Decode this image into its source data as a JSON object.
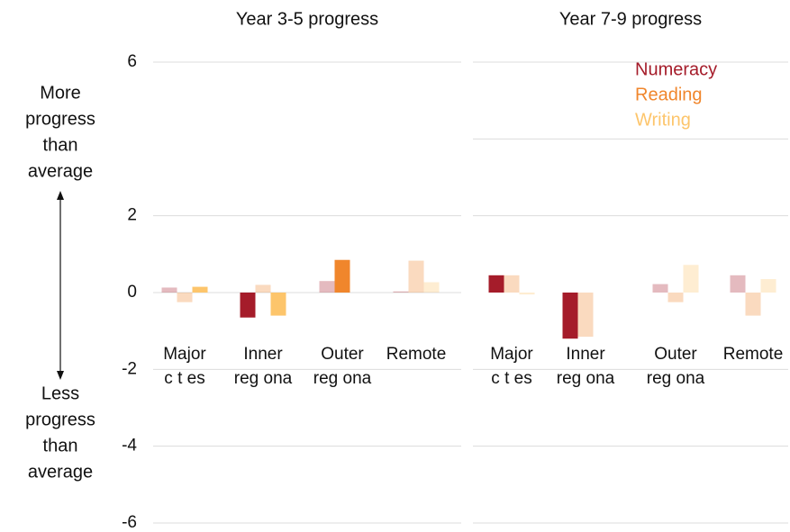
{
  "chart_data": [
    {
      "type": "bar",
      "title": "Year 3-5 progress",
      "categories": [
        [
          "Major",
          "c t es"
        ],
        [
          "Inner",
          "reg ona"
        ],
        [
          "Outer",
          "reg ona"
        ],
        [
          "Remote"
        ]
      ],
      "series": [
        {
          "name": "Numeracy",
          "color": "#a51c2a",
          "values": [
            0.13,
            -0.65,
            0.3,
            0.03
          ],
          "highlighted": [
            false,
            true,
            false,
            false
          ]
        },
        {
          "name": "Reading",
          "color": "#f0862c",
          "values": [
            -0.25,
            0.2,
            0.85,
            0.83
          ],
          "highlighted": [
            false,
            false,
            true,
            false
          ]
        },
        {
          "name": "Writing",
          "color": "#fdc56b",
          "values": [
            0.15,
            -0.6,
            0,
            0.27
          ],
          "highlighted": [
            true,
            true,
            false,
            false
          ]
        }
      ],
      "ylim": [
        -6,
        6
      ],
      "yticks": [
        6,
        2,
        0,
        -2,
        -4,
        -6
      ],
      "tick_labels": true,
      "grid": true,
      "annotations": {
        "top": [
          "More",
          "progress",
          "than",
          "average"
        ],
        "bottom": [
          "Less",
          "progress",
          "than",
          "average"
        ]
      }
    },
    {
      "type": "bar",
      "title": "Year 7-9 progress",
      "categories": [
        [
          "Major",
          "c t es"
        ],
        [
          "Inner",
          "reg ona"
        ],
        [
          "Outer",
          "reg ona"
        ],
        [
          "Remote"
        ]
      ],
      "series": [
        {
          "name": "Numeracy",
          "color": "#a51c2a",
          "values": [
            0.45,
            -1.2,
            0.22,
            0.45
          ],
          "highlighted": [
            true,
            true,
            false,
            false
          ]
        },
        {
          "name": "Reading",
          "color": "#f0862c",
          "values": [
            0.45,
            -1.15,
            -0.25,
            -0.6
          ],
          "highlighted": [
            false,
            false,
            false,
            false
          ]
        },
        {
          "name": "Writing",
          "color": "#fdc56b",
          "values": [
            -0.05,
            0,
            0.72,
            0.35
          ],
          "highlighted": [
            false,
            false,
            false,
            false
          ]
        }
      ],
      "ylim": [
        -6,
        6
      ],
      "yticks": [
        6,
        4,
        2,
        -2,
        -4,
        -6
      ],
      "tick_labels": false,
      "grid": true,
      "legend": "top-right"
    }
  ]
}
